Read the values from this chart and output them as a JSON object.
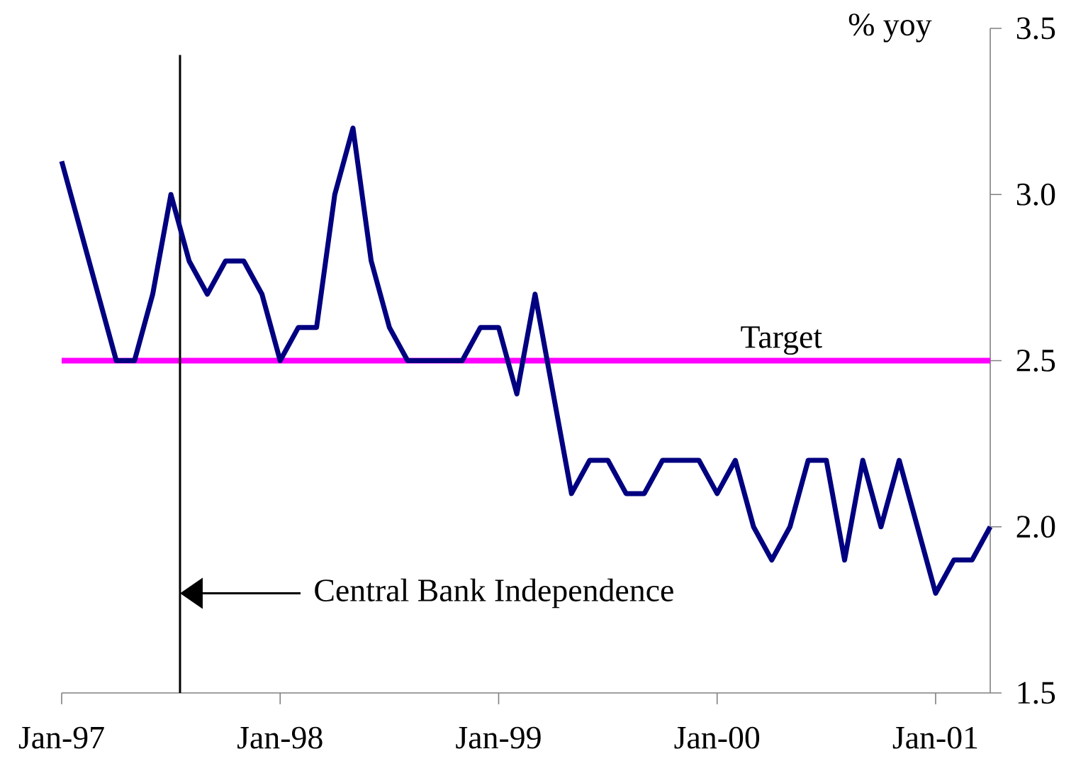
{
  "chart_data": {
    "type": "line",
    "ylabel": "% yoy",
    "x": [
      "1997-01",
      "1997-02",
      "1997-03",
      "1997-04",
      "1997-05",
      "1997-06",
      "1997-07",
      "1997-08",
      "1997-09",
      "1997-10",
      "1997-11",
      "1997-12",
      "1998-01",
      "1998-02",
      "1998-03",
      "1998-04",
      "1998-05",
      "1998-06",
      "1998-07",
      "1998-08",
      "1998-09",
      "1998-10",
      "1998-11",
      "1998-12",
      "1999-01",
      "1999-02",
      "1999-03",
      "1999-04",
      "1999-05",
      "1999-06",
      "1999-07",
      "1999-08",
      "1999-09",
      "1999-10",
      "1999-11",
      "1999-12",
      "2000-01",
      "2000-02",
      "2000-03",
      "2000-04",
      "2000-05",
      "2000-06",
      "2000-07",
      "2000-08",
      "2000-09",
      "2000-10",
      "2000-11",
      "2000-12",
      "2001-01",
      "2001-02",
      "2001-03",
      "2001-04"
    ],
    "series": [
      {
        "color": "#000080",
        "values": [
          3.1,
          2.9,
          2.7,
          2.5,
          2.5,
          2.7,
          3.0,
          2.8,
          2.7,
          2.8,
          2.8,
          2.7,
          2.5,
          2.6,
          2.6,
          3.0,
          3.2,
          2.8,
          2.6,
          2.5,
          2.5,
          2.5,
          2.5,
          2.6,
          2.6,
          2.4,
          2.7,
          2.4,
          2.1,
          2.2,
          2.2,
          2.1,
          2.1,
          2.2,
          2.2,
          2.2,
          2.1,
          2.2,
          2.0,
          1.9,
          2.0,
          2.2,
          2.2,
          1.9,
          2.2,
          2.0,
          2.2,
          2.0,
          1.8,
          1.9,
          1.9,
          2.0
        ]
      }
    ],
    "xlim": [
      "1997-01",
      "2001-04"
    ],
    "xticks": [
      {
        "value": "1997-01",
        "label": "Jan-97"
      },
      {
        "value": "1998-01",
        "label": "Jan-98"
      },
      {
        "value": "1999-01",
        "label": "Jan-99"
      },
      {
        "value": "2000-01",
        "label": "Jan-00"
      },
      {
        "value": "2001-01",
        "label": "Jan-01"
      }
    ],
    "ylim": [
      1.5,
      3.5
    ],
    "yticks": [
      {
        "value": 1.5,
        "label": "1.5"
      },
      {
        "value": 2.0,
        "label": "2.0"
      },
      {
        "value": 2.5,
        "label": "2.5"
      },
      {
        "value": 3.0,
        "label": "3.0"
      },
      {
        "value": 3.5,
        "label": "3.5"
      }
    ],
    "ref_lines": [
      {
        "axis": "y",
        "value": 2.5,
        "label": "Target",
        "color": "#ff00ff"
      },
      {
        "axis": "x",
        "value": "1997-07-16",
        "label": "Central Bank Independence",
        "color": "#000000"
      }
    ],
    "grid": false,
    "marker": "none",
    "line_style": "solid"
  }
}
